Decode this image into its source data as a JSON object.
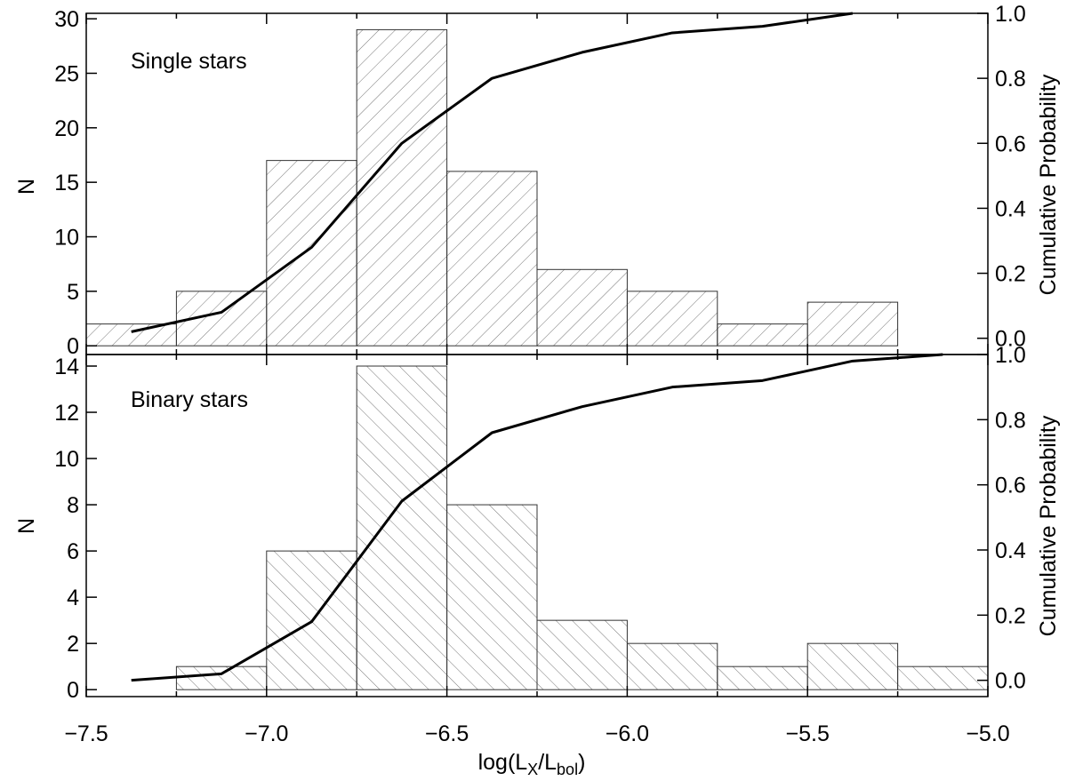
{
  "chart_data": [
    {
      "type": "bar",
      "panel": "top",
      "annotation": "Single stars",
      "xlabel": "",
      "ylabel": "N",
      "ylabel_right": "Cumulative Probability",
      "xlim": [
        -7.5,
        -5.0
      ],
      "ylim": [
        -0.8,
        30.5
      ],
      "ylim_right": [
        -0.05,
        1.0
      ],
      "y_ticks": [
        0,
        5,
        10,
        15,
        20,
        25,
        30
      ],
      "y_ticks_right": [
        "0.0",
        "0.2",
        "0.4",
        "0.6",
        "0.8",
        "1.0"
      ],
      "bin_edges": [
        -7.5,
        -7.25,
        -7.0,
        -6.75,
        -6.5,
        -6.25,
        -6.0,
        -5.75,
        -5.5,
        -5.25
      ],
      "values": [
        2,
        5,
        17,
        29,
        16,
        7,
        5,
        2,
        4
      ],
      "hatch": "forward-diagonal",
      "cumulative": {
        "x": [
          -7.375,
          -7.125,
          -6.875,
          -6.625,
          -6.375,
          -6.125,
          -5.875,
          -5.625,
          -5.375
        ],
        "y": [
          0.02,
          0.08,
          0.28,
          0.6,
          0.8,
          0.88,
          0.94,
          0.96,
          1.0
        ]
      }
    },
    {
      "type": "bar",
      "panel": "bottom",
      "annotation": "Binary stars",
      "xlabel": "log(L_X/L_bol)",
      "ylabel": "N",
      "ylabel_right": "Cumulative Probability",
      "xlim": [
        -7.5,
        -5.0
      ],
      "ylim": [
        -0.3,
        14.5
      ],
      "ylim_right": [
        -0.05,
        1.0
      ],
      "x_ticks": [
        "−7.5",
        "−7.0",
        "−6.5",
        "−6.0",
        "−5.5",
        "−5.0"
      ],
      "y_ticks": [
        0,
        2,
        4,
        6,
        8,
        10,
        12,
        14
      ],
      "y_ticks_right": [
        "0.0",
        "0.2",
        "0.4",
        "0.6",
        "0.8",
        "1.0"
      ],
      "bin_edges": [
        -7.25,
        -7.0,
        -6.75,
        -6.5,
        -6.25,
        -6.0,
        -5.75,
        -5.5,
        -5.25,
        -5.0
      ],
      "values": [
        1,
        6,
        14,
        8,
        3,
        2,
        1,
        2,
        1
      ],
      "hatch": "backward-diagonal",
      "cumulative": {
        "x": [
          -7.375,
          -7.125,
          -6.875,
          -6.625,
          -6.375,
          -6.125,
          -5.875,
          -5.625,
          -5.375,
          -5.125
        ],
        "y": [
          0.0,
          0.02,
          0.18,
          0.55,
          0.76,
          0.84,
          0.9,
          0.92,
          0.98,
          1.0
        ]
      }
    }
  ],
  "xlabel_parts": {
    "prefix": "log(L",
    "sub1": "X",
    "mid": "/L",
    "sub2": "bol",
    "suffix": ")"
  }
}
